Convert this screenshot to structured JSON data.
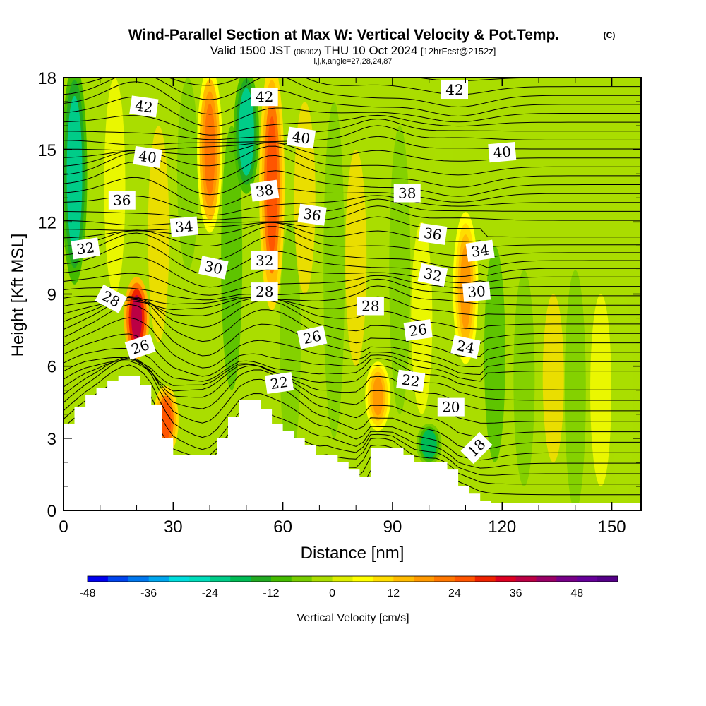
{
  "header": {
    "title": "Wind-Parallel Section at Max W: Vertical Velocity & Pot.Temp.",
    "title_mark": "(C)",
    "valid_prefix": "Valid 1500 JST",
    "valid_utc": "(0600Z)",
    "valid_date": "THU 10 Oct 2024",
    "forecast_info": "[12hrFcst@2152z]",
    "indices": "i,j,k,angle=27,28,24,87"
  },
  "chart_data": {
    "type": "heatmap",
    "title": "Wind-Parallel Section at Max W: Vertical Velocity & Pot.Temp.",
    "xlabel": "Distance [nm]",
    "ylabel": "Height [Kft MSL]",
    "xlim": [
      0,
      158
    ],
    "ylim": [
      0,
      18
    ],
    "x_ticks": [
      0,
      30,
      60,
      90,
      120,
      150
    ],
    "x_tick_labels": [
      "0",
      "30",
      "60",
      "90",
      "120",
      "150"
    ],
    "y_ticks": [
      0,
      3,
      6,
      9,
      12,
      15,
      18
    ],
    "y_tick_labels": [
      "0",
      "3",
      "6",
      "9",
      "12",
      "15",
      "18"
    ],
    "terrain_profile": {
      "x": [
        0,
        3,
        6,
        9,
        12,
        15,
        18,
        21,
        24,
        27,
        30,
        33,
        36,
        39,
        42,
        45,
        48,
        51,
        54,
        57,
        60,
        63,
        66,
        69,
        72,
        75,
        78,
        81,
        84,
        87,
        90,
        93,
        96,
        99,
        102,
        105,
        108,
        111,
        114,
        117,
        120,
        125,
        130,
        140,
        150,
        158
      ],
      "height_kft": [
        3.6,
        4.3,
        4.8,
        5.1,
        5.4,
        5.6,
        5.6,
        5.2,
        4.4,
        3.0,
        2.3,
        2.3,
        2.3,
        2.3,
        3.0,
        3.9,
        4.6,
        4.6,
        4.2,
        3.6,
        3.3,
        3.0,
        2.7,
        2.3,
        2.3,
        2.0,
        1.7,
        1.4,
        2.6,
        2.6,
        2.6,
        2.3,
        2.0,
        2.0,
        2.0,
        1.7,
        1.0,
        0.7,
        0.4,
        0.3,
        0.3,
        0.3,
        0.3,
        0.3,
        0.3,
        0.3
      ]
    },
    "updraft_bands": [
      {
        "x": 20,
        "top_kft": 9.5,
        "bottom_kft": 6.5,
        "w_cm_s": 36
      },
      {
        "x": 28,
        "top_kft": 5.0,
        "bottom_kft": 2.5,
        "w_cm_s": 24
      },
      {
        "x": 40,
        "top_kft": 18,
        "bottom_kft": 12,
        "w_cm_s": 20
      },
      {
        "x": 57,
        "top_kft": 18,
        "bottom_kft": 9,
        "w_cm_s": 24
      },
      {
        "x": 86,
        "top_kft": 6.0,
        "bottom_kft": 3.5,
        "w_cm_s": 18
      },
      {
        "x": 110,
        "top_kft": 12,
        "bottom_kft": 6.5,
        "w_cm_s": 16
      }
    ],
    "downdraft_bands": [
      {
        "x": 3,
        "top_kft": 18,
        "bottom_kft": 10,
        "w_cm_s": -24
      },
      {
        "x": 50,
        "top_kft": 18,
        "bottom_kft": 13.5,
        "w_cm_s": -24
      },
      {
        "x": 100,
        "top_kft": 3.5,
        "bottom_kft": 2.0,
        "w_cm_s": -20
      }
    ],
    "isentrope_labels": [
      {
        "text": "42",
        "x": 22,
        "y": 16.8,
        "angle": 8
      },
      {
        "text": "42",
        "x": 55,
        "y": 17.2,
        "angle": 0
      },
      {
        "text": "42",
        "x": 107,
        "y": 17.5,
        "angle": 0
      },
      {
        "text": "40",
        "x": 23,
        "y": 14.7,
        "angle": 8
      },
      {
        "text": "40",
        "x": 65,
        "y": 15.5,
        "angle": 8
      },
      {
        "text": "40",
        "x": 120,
        "y": 14.9,
        "angle": -5
      },
      {
        "text": "38",
        "x": 55,
        "y": 13.3,
        "angle": -8
      },
      {
        "text": "38",
        "x": 94,
        "y": 13.2,
        "angle": 0
      },
      {
        "text": "36",
        "x": 16,
        "y": 12.9,
        "angle": 0
      },
      {
        "text": "36",
        "x": 68,
        "y": 12.3,
        "angle": 8
      },
      {
        "text": "36",
        "x": 101,
        "y": 11.5,
        "angle": 8
      },
      {
        "text": "34",
        "x": 33,
        "y": 11.8,
        "angle": -5
      },
      {
        "text": "34",
        "x": 114,
        "y": 10.8,
        "angle": -8
      },
      {
        "text": "32",
        "x": 6,
        "y": 10.9,
        "angle": -8
      },
      {
        "text": "32",
        "x": 55,
        "y": 10.4,
        "angle": 0
      },
      {
        "text": "32",
        "x": 101,
        "y": 9.8,
        "angle": 12
      },
      {
        "text": "30",
        "x": 41,
        "y": 10.1,
        "angle": 12
      },
      {
        "text": "30",
        "x": 113,
        "y": 9.1,
        "angle": -5
      },
      {
        "text": "28",
        "x": 13,
        "y": 8.8,
        "angle": 28
      },
      {
        "text": "28",
        "x": 55,
        "y": 9.1,
        "angle": 0
      },
      {
        "text": "28",
        "x": 84,
        "y": 8.5,
        "angle": 0
      },
      {
        "text": "26",
        "x": 21,
        "y": 6.8,
        "angle": -18
      },
      {
        "text": "26",
        "x": 68,
        "y": 7.2,
        "angle": -12
      },
      {
        "text": "26",
        "x": 97,
        "y": 7.5,
        "angle": -8
      },
      {
        "text": "24",
        "x": 110,
        "y": 6.8,
        "angle": 12
      },
      {
        "text": "22",
        "x": 59,
        "y": 5.3,
        "angle": -8
      },
      {
        "text": "22",
        "x": 95,
        "y": 5.4,
        "angle": 8
      },
      {
        "text": "20",
        "x": 106,
        "y": 4.3,
        "angle": 0
      },
      {
        "text": "18",
        "x": 113,
        "y": 2.6,
        "angle": -45
      }
    ],
    "isentrope_levels": [
      17.3,
      18.0,
      18.7,
      19.4,
      20.0,
      20.6,
      21.2,
      21.8,
      22.4,
      23.0,
      23.5,
      24.0,
      24.5,
      25.0,
      25.4,
      25.8,
      26.2,
      26.6,
      27.0,
      27.4,
      27.8,
      28.3,
      28.8,
      29.3,
      29.8,
      30.3,
      30.8,
      31.3,
      31.8,
      32.3,
      32.9,
      33.5,
      34.1,
      34.7,
      35.3,
      35.9,
      36.5,
      37.1,
      37.7,
      38.3,
      38.9,
      39.5,
      40.1,
      40.7,
      41.3,
      41.9,
      42.5,
      43.1,
      43.7
    ]
  },
  "colorbar": {
    "label": "Vertical Velocity [cm/s]",
    "min": -48,
    "max": 56,
    "ticks": [
      -48,
      -36,
      -24,
      -12,
      0,
      12,
      24,
      36,
      48
    ],
    "tick_labels": [
      "-48",
      "-36",
      "-24",
      "-12",
      "0",
      "12",
      "24",
      "36",
      "48"
    ],
    "colors": [
      "#0000ee",
      "#0044ee",
      "#0077ee",
      "#00a6ee",
      "#00dddd",
      "#00ddbb",
      "#00cc88",
      "#00bb55",
      "#22aa22",
      "#44bb00",
      "#77cc00",
      "#aadd00",
      "#ddee00",
      "#ffff00",
      "#ffdd00",
      "#ffbb00",
      "#ff9900",
      "#ff7700",
      "#ff5500",
      "#ee2200",
      "#dd0022",
      "#bb0044",
      "#990066",
      "#770088",
      "#660099",
      "#550088"
    ]
  }
}
